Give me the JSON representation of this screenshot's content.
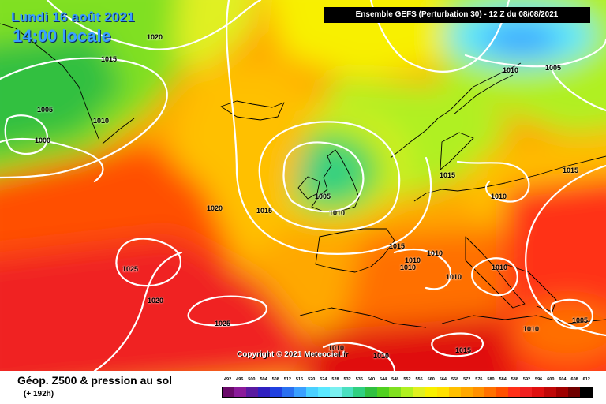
{
  "header": {
    "date": "Lundi 16 août 2021",
    "local_time": "14:00 locale",
    "run_info": "Ensemble GEFS  (Perturbation 30)  -  12 Z du 08/08/2021"
  },
  "copyright": "Copyright © 2021 Meteociel.fr",
  "footer": {
    "title": "Géop. Z500 & pression au sol",
    "offset": "(+ 192h)"
  },
  "legend": {
    "values": [
      "492",
      "496",
      "500",
      "504",
      "508",
      "512",
      "516",
      "520",
      "524",
      "528",
      "532",
      "536",
      "540",
      "544",
      "548",
      "552",
      "556",
      "560",
      "564",
      "568",
      "572",
      "576",
      "580",
      "584",
      "588",
      "592",
      "596",
      "600",
      "604",
      "608",
      "612"
    ],
    "colors": [
      "#6a0a6a",
      "#8a1a9a",
      "#5a1aa0",
      "#3020c0",
      "#2040e0",
      "#2a70f0",
      "#3aa0ff",
      "#4ad0ff",
      "#5ae8ff",
      "#7af0f0",
      "#4ae0c0",
      "#30d080",
      "#30c040",
      "#50d020",
      "#80e020",
      "#b0f020",
      "#e0f020",
      "#f8f000",
      "#ffe000",
      "#ffc000",
      "#ffa800",
      "#ff9000",
      "#ff7000",
      "#ff5000",
      "#ff3018",
      "#f02020",
      "#e01010",
      "#c00808",
      "#a00000",
      "#700000",
      "#000000"
    ]
  },
  "pressure_labels": [
    "1020",
    "1015",
    "1005",
    "1010",
    "1000",
    "1020",
    "1015",
    "1005",
    "1010",
    "1015",
    "1010",
    "1025",
    "1020",
    "1025",
    "1015",
    "1010",
    "1010",
    "1010",
    "1010",
    "1010",
    "1015",
    "1010",
    "1010",
    "1010",
    "1005",
    "1010",
    "1015",
    "1005"
  ]
}
